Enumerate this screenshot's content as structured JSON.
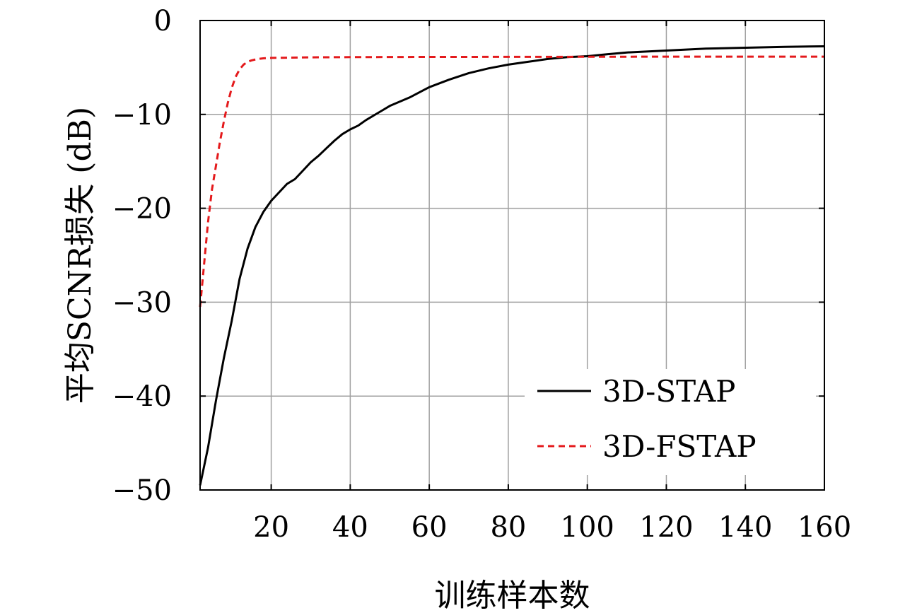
{
  "chart_data": {
    "type": "line",
    "xlabel": "训练样本数",
    "ylabel": "平均SCNR损失 (dB)",
    "xlim": [
      2,
      160
    ],
    "ylim": [
      -50,
      0
    ],
    "xticks": [
      20,
      40,
      60,
      80,
      100,
      120,
      140,
      160
    ],
    "yticks": [
      0,
      -10,
      -20,
      -30,
      -40,
      -50
    ],
    "xtick_labels": [
      "20",
      "40",
      "60",
      "80",
      "100",
      "120",
      "140",
      "160"
    ],
    "ytick_labels": [
      "0",
      "−10",
      "−20",
      "−30",
      "−40",
      "−50"
    ],
    "grid": true,
    "legend_position": "bottom-right",
    "series": [
      {
        "name": "3D-STAP",
        "color": "#000000",
        "dash": "solid",
        "x": [
          2,
          4,
          6,
          8,
          10,
          12,
          14,
          16,
          18,
          20,
          22,
          24,
          26,
          28,
          30,
          32,
          34,
          36,
          38,
          40,
          42,
          44,
          46,
          48,
          50,
          55,
          60,
          65,
          70,
          75,
          80,
          85,
          90,
          95,
          100,
          105,
          110,
          120,
          130,
          140,
          150,
          160
        ],
        "y": [
          -49.5,
          -45.5,
          -40.5,
          -36,
          -32,
          -27.5,
          -24.3,
          -22,
          -20.4,
          -19.2,
          -18.3,
          -17.4,
          -16.9,
          -16,
          -15.1,
          -14.4,
          -13.6,
          -12.8,
          -12.1,
          -11.6,
          -11.2,
          -10.6,
          -10.1,
          -9.6,
          -9.1,
          -8.2,
          -7.1,
          -6.3,
          -5.6,
          -5.1,
          -4.7,
          -4.4,
          -4.1,
          -3.9,
          -3.8,
          -3.6,
          -3.4,
          -3.2,
          -3.0,
          -2.9,
          -2.8,
          -2.75
        ]
      },
      {
        "name": "3D-FSTAP",
        "color": "#e41a1c",
        "dash": "dashed",
        "x": [
          2,
          3,
          4,
          5,
          6,
          7,
          8,
          9,
          10,
          11,
          12,
          13,
          14,
          15,
          16,
          17,
          18,
          19,
          20,
          25,
          30,
          40,
          60,
          80,
          100,
          120,
          140,
          160
        ],
        "y": [
          -30.5,
          -26,
          -21.5,
          -18,
          -15.5,
          -13,
          -10.8,
          -8.8,
          -7.2,
          -6.0,
          -5.2,
          -4.7,
          -4.4,
          -4.25,
          -4.15,
          -4.08,
          -4.03,
          -4.0,
          -3.98,
          -3.95,
          -3.92,
          -3.9,
          -3.88,
          -3.87,
          -3.86,
          -3.85,
          -3.85,
          -3.85
        ]
      }
    ]
  }
}
